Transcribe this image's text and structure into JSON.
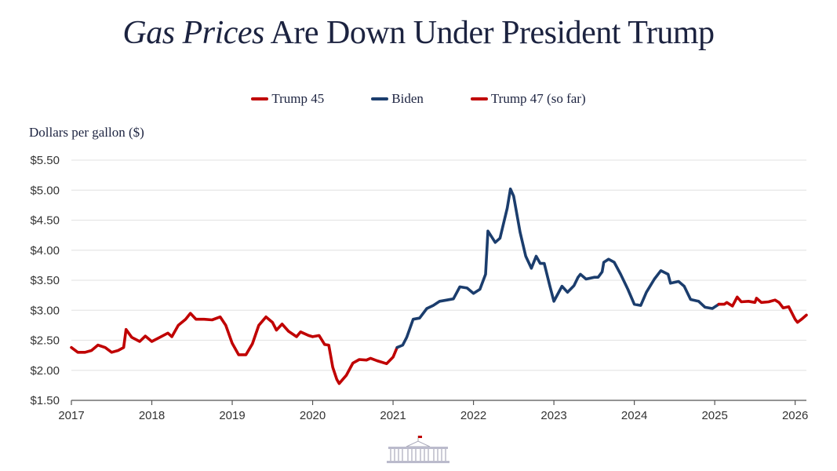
{
  "chart_data": {
    "type": "line",
    "title_italic": "Gas Prices",
    "title_rest": " Are Down Under President Trump",
    "ylabel": "Dollars per gallon ($)",
    "xlabel": "",
    "xlim": [
      2017,
      2026.14
    ],
    "ylim": [
      1.5,
      5.5
    ],
    "yticks": [
      1.5,
      2.0,
      2.5,
      3.0,
      3.5,
      4.0,
      4.5,
      5.0,
      5.5
    ],
    "ytick_labels": [
      "$1.50",
      "$2.00",
      "$2.50",
      "$3.00",
      "$3.50",
      "$4.00",
      "$4.50",
      "$5.00",
      "$5.50"
    ],
    "xticks": [
      2017,
      2018,
      2019,
      2020,
      2021,
      2022,
      2023,
      2024,
      2025,
      2026
    ],
    "xtick_labels": [
      "2017",
      "2018",
      "2019",
      "2020",
      "2021",
      "2022",
      "2023",
      "2024",
      "2025",
      "2026"
    ],
    "grid": true,
    "legend_position": "top-center",
    "series": [
      {
        "name": "Trump 45",
        "color": "#c00000",
        "x": [
          2017.0,
          2017.08,
          2017.17,
          2017.25,
          2017.33,
          2017.42,
          2017.5,
          2017.58,
          2017.65,
          2017.68,
          2017.75,
          2017.85,
          2017.92,
          2018.0,
          2018.1,
          2018.2,
          2018.25,
          2018.33,
          2018.42,
          2018.48,
          2018.55,
          2018.65,
          2018.75,
          2018.85,
          2018.92,
          2019.0,
          2019.08,
          2019.17,
          2019.25,
          2019.33,
          2019.42,
          2019.5,
          2019.55,
          2019.62,
          2019.7,
          2019.8,
          2019.85,
          2019.95,
          2020.0,
          2020.08,
          2020.15,
          2020.2,
          2020.25,
          2020.3,
          2020.33,
          2020.42,
          2020.5,
          2020.58,
          2020.67,
          2020.72,
          2020.8,
          2020.92,
          2021.0,
          2021.05
        ],
        "y": [
          2.38,
          2.3,
          2.3,
          2.33,
          2.42,
          2.38,
          2.3,
          2.33,
          2.38,
          2.68,
          2.55,
          2.48,
          2.57,
          2.48,
          2.55,
          2.62,
          2.56,
          2.75,
          2.85,
          2.95,
          2.85,
          2.85,
          2.84,
          2.89,
          2.75,
          2.45,
          2.26,
          2.26,
          2.44,
          2.75,
          2.89,
          2.8,
          2.67,
          2.77,
          2.65,
          2.56,
          2.64,
          2.58,
          2.56,
          2.58,
          2.43,
          2.42,
          2.05,
          1.85,
          1.78,
          1.92,
          2.12,
          2.18,
          2.17,
          2.2,
          2.16,
          2.11,
          2.22,
          2.38
        ]
      },
      {
        "name": "Biden",
        "color": "#1b3d6d",
        "x": [
          2021.05,
          2021.12,
          2021.17,
          2021.25,
          2021.33,
          2021.42,
          2021.5,
          2021.58,
          2021.67,
          2021.75,
          2021.83,
          2021.92,
          2022.0,
          2022.08,
          2022.15,
          2022.18,
          2022.27,
          2022.33,
          2022.42,
          2022.46,
          2022.5,
          2022.58,
          2022.65,
          2022.72,
          2022.78,
          2022.83,
          2022.88,
          2022.95,
          2023.0,
          2023.1,
          2023.17,
          2023.25,
          2023.3,
          2023.33,
          2023.4,
          2023.5,
          2023.55,
          2023.6,
          2023.62,
          2023.68,
          2023.75,
          2023.83,
          2023.92,
          2024.0,
          2024.08,
          2024.15,
          2024.25,
          2024.33,
          2024.42,
          2024.45,
          2024.55,
          2024.62,
          2024.7,
          2024.8,
          2024.88,
          2024.97,
          2025.05
        ],
        "y": [
          2.38,
          2.42,
          2.55,
          2.85,
          2.87,
          3.03,
          3.08,
          3.15,
          3.17,
          3.19,
          3.39,
          3.37,
          3.28,
          3.35,
          3.6,
          4.32,
          4.13,
          4.2,
          4.7,
          5.02,
          4.9,
          4.3,
          3.9,
          3.7,
          3.9,
          3.78,
          3.78,
          3.4,
          3.15,
          3.4,
          3.3,
          3.41,
          3.55,
          3.6,
          3.52,
          3.55,
          3.55,
          3.64,
          3.8,
          3.85,
          3.8,
          3.6,
          3.35,
          3.1,
          3.08,
          3.3,
          3.52,
          3.66,
          3.6,
          3.45,
          3.48,
          3.4,
          3.18,
          3.15,
          3.05,
          3.03,
          3.1
        ]
      },
      {
        "name": "Trump 47 (so far)",
        "color": "#c00000",
        "x": [
          2025.05,
          2025.12,
          2025.15,
          2025.22,
          2025.28,
          2025.33,
          2025.42,
          2025.5,
          2025.52,
          2025.58,
          2025.67,
          2025.75,
          2025.8,
          2025.85,
          2025.92,
          2026.0,
          2026.03,
          2026.08,
          2026.14
        ],
        "y": [
          3.1,
          3.1,
          3.13,
          3.07,
          3.22,
          3.14,
          3.15,
          3.13,
          3.2,
          3.13,
          3.14,
          3.17,
          3.13,
          3.04,
          3.06,
          2.85,
          2.8,
          2.85,
          2.92
        ]
      }
    ]
  },
  "logo": "white-house-logo"
}
